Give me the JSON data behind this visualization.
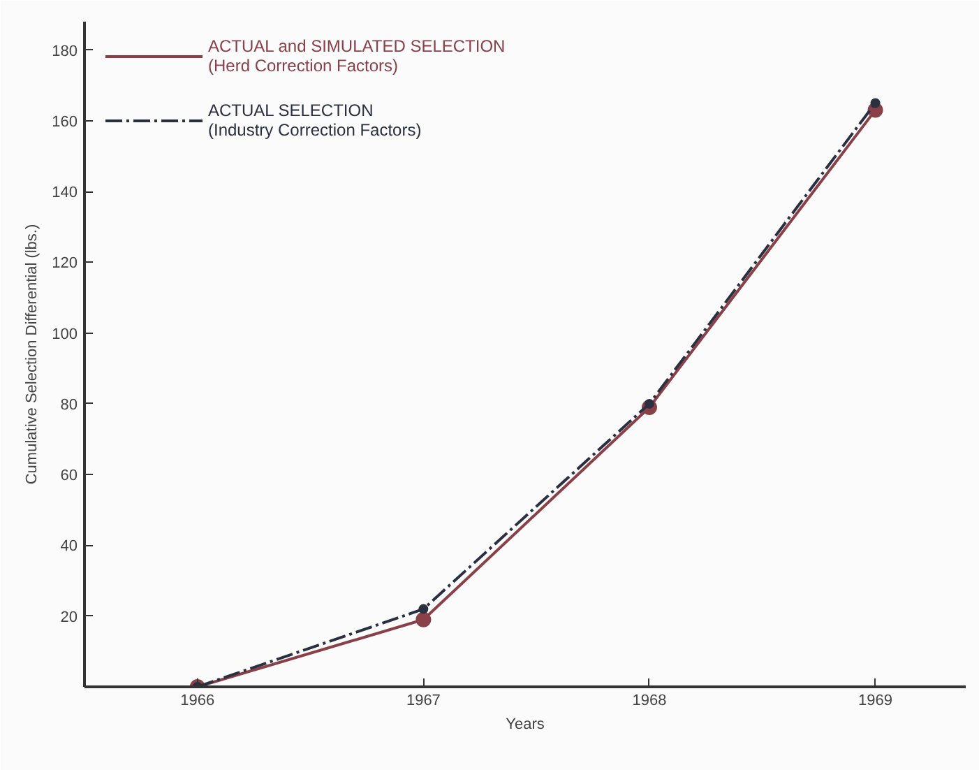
{
  "chart_data": {
    "type": "line",
    "xlabel": "Years",
    "ylabel": "Cumulative Selection Differential (lbs.)",
    "x": [
      1966,
      1967,
      1968,
      1969
    ],
    "series": [
      {
        "name": "ACTUAL and SIMULATED SELECTION\n(Herd Correction Factors)",
        "color": "#8a4048",
        "line_style": "solid",
        "values": [
          0,
          19,
          79,
          163
        ]
      },
      {
        "name": "ACTUAL SELECTION\n(Industry Correction Factors)",
        "color": "#2b3040",
        "line_style": "dashed",
        "values": [
          0,
          22,
          80,
          165
        ]
      }
    ],
    "xlim": [
      1965.5,
      1969.4
    ],
    "ylim": [
      0,
      188
    ],
    "xticks": [
      1966,
      1967,
      1968,
      1969
    ],
    "yticks": [
      20,
      40,
      60,
      80,
      100,
      120,
      140,
      160,
      180
    ],
    "marker": "circle",
    "grid": false,
    "legend": "top left"
  }
}
